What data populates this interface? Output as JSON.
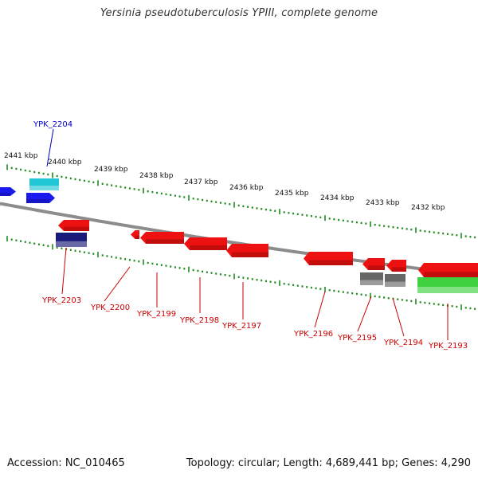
{
  "title": "Yersinia pseudotuberculosis YPIII, complete genome",
  "footer": {
    "accession": "Accession: NC_010465",
    "stats": "Topology: circular; Length: 4,689,441 bp; Genes: 4,290"
  },
  "colors": {
    "backbone": "#8c8c8c",
    "tick": "#1f8a1f",
    "forward_gene": "#1a1aee",
    "reverse_gene": "#ee1111",
    "rna_gene": "#3fd13f",
    "pseudo_gene": "#666666",
    "misc_feature": "#22c7d6",
    "repeat_region": "#1a1a7a",
    "forward_label": "#0000cc",
    "reverse_label": "#cc0000"
  },
  "tick_labels": [
    "2441 kbp",
    "2440 kbp",
    "2439 kbp",
    "2438 kbp",
    "2437 kbp",
    "2436 kbp",
    "2435 kbp",
    "2434 kbp",
    "2433 kbp",
    "2432 kbp"
  ],
  "gene_labels": {
    "forward": [
      "YPK_2204"
    ],
    "reverse": [
      "YPK_2203",
      "YPK_2200",
      "YPK_2199",
      "YPK_2198",
      "YPK_2197",
      "YPK_2196",
      "YPK_2195",
      "YPK_2194",
      "YPK_2193"
    ]
  }
}
